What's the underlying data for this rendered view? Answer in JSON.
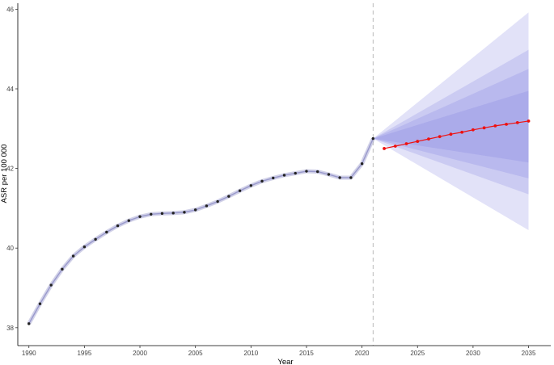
{
  "chart_data": {
    "type": "line",
    "title": "",
    "xlabel": "Year",
    "ylabel": "ASR per 100 000",
    "xlim": [
      1989,
      2037
    ],
    "ylim": [
      37.55,
      46.15
    ],
    "x_ticks": [
      1990,
      1995,
      2000,
      2005,
      2010,
      2015,
      2020,
      2025,
      2030,
      2035
    ],
    "y_ticks": [
      38,
      40,
      42,
      44,
      46
    ],
    "grid": false,
    "legend": "none",
    "forecast_start": 2021,
    "colors": {
      "observed_line": "#9999cc",
      "observed_point": "#222222",
      "forecast": "#ee1111",
      "interval_band": "#7b7be0",
      "divider": "#bbbbbb"
    },
    "observed": {
      "x": [
        1990,
        1991,
        1992,
        1993,
        1994,
        1995,
        1996,
        1997,
        1998,
        1999,
        2000,
        2001,
        2002,
        2003,
        2004,
        2005,
        2006,
        2007,
        2008,
        2009,
        2010,
        2011,
        2012,
        2013,
        2014,
        2015,
        2016,
        2017,
        2018,
        2019,
        2020,
        2021
      ],
      "y": [
        38.1,
        38.6,
        39.07,
        39.47,
        39.8,
        40.03,
        40.22,
        40.4,
        40.56,
        40.69,
        40.79,
        40.85,
        40.87,
        40.88,
        40.9,
        40.96,
        41.06,
        41.17,
        41.3,
        41.44,
        41.57,
        41.68,
        41.76,
        41.83,
        41.88,
        41.93,
        41.92,
        41.85,
        41.77,
        41.77,
        42.12,
        42.75
      ]
    },
    "forecast": {
      "x": [
        2022,
        2023,
        2024,
        2025,
        2026,
        2027,
        2028,
        2029,
        2030,
        2031,
        2032,
        2033,
        2034,
        2035
      ],
      "y": [
        42.5,
        42.56,
        42.62,
        42.68,
        42.74,
        42.8,
        42.86,
        42.91,
        42.97,
        43.02,
        43.07,
        43.11,
        43.15,
        43.19
      ]
    },
    "bands": [
      {
        "x": [
          2021,
          2035
        ],
        "lower": [
          42.75,
          40.45
        ],
        "upper": [
          42.75,
          45.92
        ]
      },
      {
        "x": [
          2021,
          2035
        ],
        "lower": [
          42.75,
          41.35
        ],
        "upper": [
          42.75,
          44.98
        ]
      },
      {
        "x": [
          2021,
          2035
        ],
        "lower": [
          42.75,
          41.75
        ],
        "upper": [
          42.75,
          44.5
        ]
      },
      {
        "x": [
          2021,
          2035
        ],
        "lower": [
          42.75,
          42.15
        ],
        "upper": [
          42.75,
          43.95
        ]
      }
    ]
  }
}
